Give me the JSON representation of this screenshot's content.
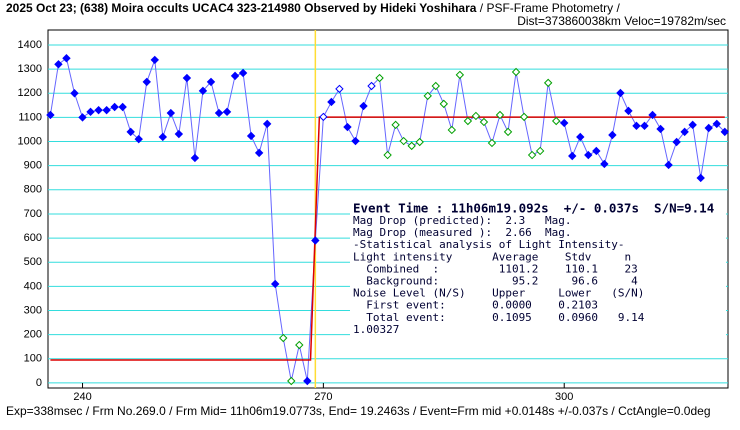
{
  "chart_data": {
    "type": "scatter",
    "title": "2025 Oct 23; (638) Moira occults UCAC4 323-214980 Observed by Hideki Yoshihara",
    "subtitle": " / PSF-Frame Photometry /",
    "subtitle2": "Dist=373860038km Veloc=19782m/sec",
    "footer": "Exp=338msec / Frm No.269.0 / Frm Mid= 11h06m19.0773s, End= 19.2463s / Event=Frm mid +0.0148s +/-0.037s / CctAngle=0.0deg",
    "event_text": "Event Time : 11h06m19.092s  +/- 0.037s  S/N=9.14",
    "info_lines": [
      "Mag Drop (predicted):  2.3   Mag.",
      "Mag Drop (measured ):  2.66  Mag.",
      "-Statistical analysis of Light Intensity-",
      "Light intensity      Average    Stdv     n",
      "  Combined  :         1101.2    110.1    23",
      "  Background:           95.2     96.6     4",
      "Noise Level (N/S)    Upper     Lower   (S/N)",
      "  First event:       0.0000    0.2103",
      "  Total event:       0.1095    0.0960   9.14",
      "1.00327"
    ],
    "x": [
      236,
      237,
      238,
      239,
      240,
      241,
      242,
      243,
      244,
      245,
      246,
      247,
      248,
      249,
      250,
      251,
      252,
      253,
      254,
      255,
      256,
      257,
      258,
      259,
      260,
      261,
      262,
      263,
      264,
      265,
      266,
      267,
      268,
      269,
      270,
      271,
      272,
      273,
      274,
      275,
      276,
      277,
      278,
      279,
      280,
      281,
      282,
      283,
      284,
      285,
      286,
      287,
      288,
      289,
      290,
      291,
      292,
      293,
      294,
      295,
      296,
      297,
      298,
      299,
      300,
      301,
      302,
      303,
      304,
      305,
      306,
      307,
      308,
      309,
      310,
      311,
      312,
      313,
      314,
      315,
      316,
      317,
      318,
      319,
      320
    ],
    "values": [
      1110,
      1320,
      1345,
      1200,
      1100,
      1123,
      1130,
      1130,
      1143,
      1143,
      1040,
      1010,
      1247,
      1338,
      1019,
      1118,
      1031,
      1263,
      932,
      1210,
      1247,
      1118,
      1123,
      1272,
      1284,
      1023,
      953,
      1073,
      410,
      186,
      8,
      157,
      8,
      590,
      1102,
      1164,
      1218,
      1060,
      1002,
      1147,
      1230,
      1263,
      944,
      1069,
      1002,
      982,
      998,
      1189,
      1230,
      1156,
      1048,
      1276,
      1085,
      1106,
      1081,
      994,
      1110,
      1040,
      1288,
      1102,
      944,
      961,
      1243,
      1085,
      1077,
      940,
      1019,
      944,
      961,
      907,
      1027,
      1201,
      1127,
      1065,
      1065,
      1110,
      1052,
      903,
      998,
      1040,
      1069,
      849,
      1056,
      1073,
      1040
    ],
    "line_color": "#6666ff",
    "marker_colors": [
      "#0000ff",
      "#0000ff",
      "#0000ff",
      "#0000ff",
      "#0000ff",
      "#0000ff",
      "#0000ff",
      "#0000ff",
      "#0000ff",
      "#0000ff",
      "#0000ff",
      "#0000ff",
      "#0000ff",
      "#0000ff",
      "#0000ff",
      "#0000ff",
      "#0000ff",
      "#0000ff",
      "#0000ff",
      "#0000ff",
      "#0000ff",
      "#0000ff",
      "#0000ff",
      "#0000ff",
      "#0000ff",
      "#0000ff",
      "#0000ff",
      "#0000ff",
      "#0000ff",
      "#00a000",
      "#00a000",
      "#00a000",
      "#0000ff",
      "#0000ff",
      "#0000ff",
      "#0000ff",
      "#0000ff",
      "#0000ff",
      "#0000ff",
      "#0000ff",
      "#0000ff",
      "#00a000",
      "#00a000",
      "#00a000",
      "#00a000",
      "#00a000",
      "#00a000",
      "#00a000",
      "#00a000",
      "#00a000",
      "#00a000",
      "#00a000",
      "#00a000",
      "#00a000",
      "#00a000",
      "#00a000",
      "#00a000",
      "#00a000",
      "#00a000",
      "#00a000",
      "#00a000",
      "#00a000",
      "#00a000",
      "#00a000",
      "#0000ff",
      "#0000ff",
      "#0000ff",
      "#0000ff",
      "#0000ff",
      "#0000ff",
      "#0000ff",
      "#0000ff",
      "#0000ff",
      "#0000ff",
      "#0000ff",
      "#0000ff",
      "#0000ff",
      "#0000ff",
      "#0000ff",
      "#0000ff",
      "#0000ff",
      "#0000ff",
      "#0000ff",
      "#0000ff",
      "#0000ff"
    ],
    "marker_open": [
      false,
      false,
      false,
      false,
      false,
      false,
      false,
      false,
      false,
      false,
      false,
      false,
      false,
      false,
      false,
      false,
      false,
      false,
      false,
      false,
      false,
      false,
      false,
      false,
      false,
      false,
      false,
      false,
      false,
      true,
      true,
      true,
      false,
      false,
      true,
      false,
      true,
      false,
      false,
      false,
      true,
      true,
      true,
      true,
      true,
      true,
      true,
      true,
      true,
      true,
      true,
      true,
      true,
      true,
      true,
      true,
      true,
      true,
      true,
      true,
      true,
      true,
      true,
      true,
      false,
      false,
      false,
      false,
      false,
      false,
      false,
      false,
      false,
      false,
      false,
      false,
      false,
      false,
      false,
      false,
      false,
      false,
      false,
      false,
      false
    ],
    "model": {
      "color": "#dd0000",
      "x": [
        236,
        268.4,
        269.5,
        320
      ],
      "values": [
        95.2,
        95.2,
        1101.2,
        1101.2
      ]
    },
    "event_frame": 269.0,
    "event_color": "#ffdd33",
    "xlim": [
      235.7,
      320.4
    ],
    "xticks": [
      240,
      270,
      300
    ],
    "ylim": [
      -21,
      1462
    ],
    "yticks": [
      0,
      100,
      200,
      300,
      400,
      500,
      600,
      700,
      800,
      900,
      1000,
      1100,
      1200,
      1300,
      1400
    ],
    "grid": true,
    "grid_color": "#33dddd"
  }
}
